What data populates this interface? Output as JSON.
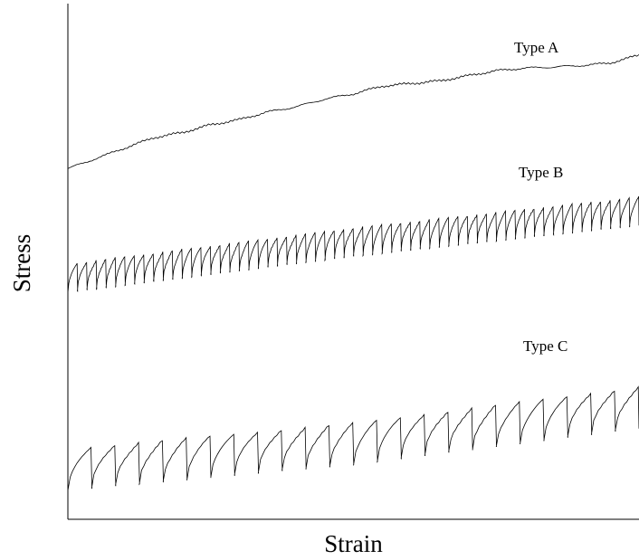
{
  "chart_data": {
    "type": "line",
    "title": "",
    "xlabel": "Strain",
    "ylabel": "Stress",
    "grid": false,
    "axes_ticks": false,
    "legend": "none",
    "line_color": "#000000",
    "series": [
      {
        "name": "Type A",
        "pattern": "smooth",
        "x": [
          0,
          0.05,
          0.1,
          0.15,
          0.2,
          0.25,
          0.3,
          0.35,
          0.4,
          0.45,
          0.5,
          0.55,
          0.6,
          0.65,
          0.7,
          0.75,
          0.8,
          0.85,
          0.9,
          0.95,
          1.0
        ],
        "y": [
          0.68,
          0.7,
          0.72,
          0.74,
          0.75,
          0.765,
          0.775,
          0.79,
          0.8,
          0.815,
          0.825,
          0.84,
          0.845,
          0.85,
          0.86,
          0.87,
          0.875,
          0.877,
          0.88,
          0.885,
          0.9
        ]
      },
      {
        "name": "Type B",
        "pattern": "serrated-dense",
        "x": [
          0,
          0.5,
          1.0
        ],
        "y": [
          0.47,
          0.54,
          0.6
        ],
        "amplitude": 0.055,
        "cycles": 60
      },
      {
        "name": "Type C",
        "pattern": "serrated-sparse",
        "x": [
          0,
          0.5,
          1.0
        ],
        "y": [
          0.1,
          0.15,
          0.22
        ],
        "amplitude": 0.08,
        "cycles": 24
      }
    ],
    "annotations": [
      {
        "text": "Type A",
        "series": 0
      },
      {
        "text": "Type B",
        "series": 1
      },
      {
        "text": "Type C",
        "series": 2
      }
    ],
    "xlim": [
      0,
      1
    ],
    "ylim": [
      0,
      1
    ]
  }
}
